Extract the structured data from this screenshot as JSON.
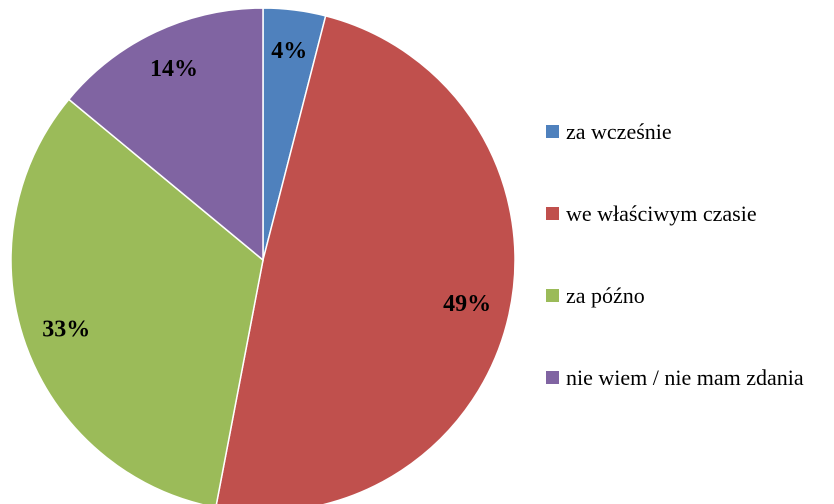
{
  "chart_data": {
    "type": "pie",
    "categories": [
      "za wcześnie",
      "we właściwym czasie",
      "za późno",
      "nie wiem / nie mam zdania"
    ],
    "values": [
      4,
      49,
      33,
      14
    ],
    "value_labels": [
      "4%",
      "49%",
      "33%",
      "14%"
    ],
    "colors": [
      "#4f81bd",
      "#c0504d",
      "#9bbb59",
      "#8064a2"
    ],
    "legend": "right"
  }
}
